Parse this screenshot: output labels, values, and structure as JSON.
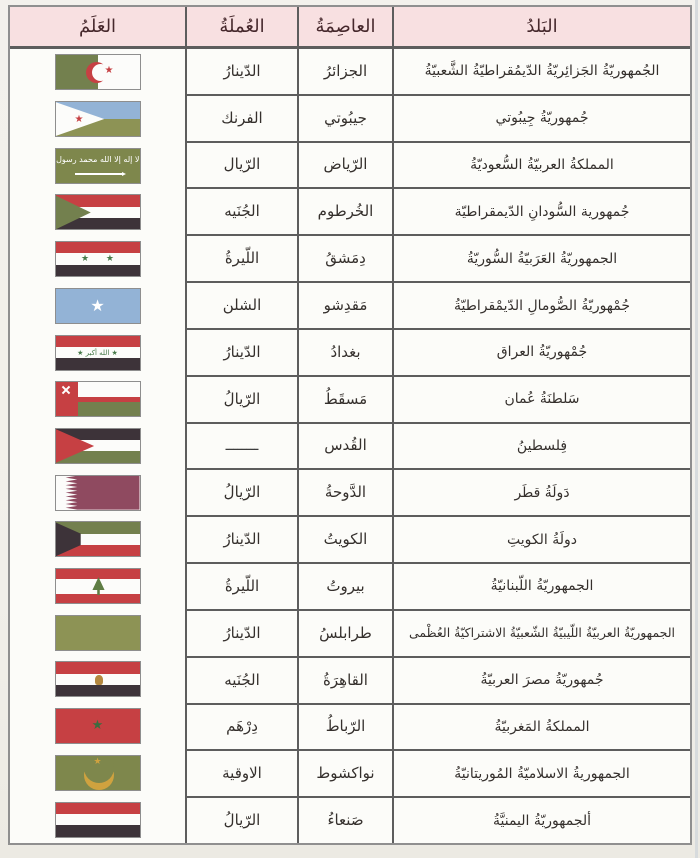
{
  "table": {
    "headers": {
      "flag": "العَلَمُ",
      "currency": "العُملَةُ",
      "capital": "العاصِمَةُ",
      "country": "البَلدُ"
    },
    "rows": [
      {
        "flag_icon": "algeria-flag",
        "country": "الجُمهوريّةُ الجَزائِريّةُ الدّيمُقراطيّةُ الشَّعبيّةُ",
        "capital": "الجزائرُ",
        "currency": "الدّينارُ"
      },
      {
        "flag_icon": "djibouti-flag",
        "country": "جُمهوريّةُ جِيبُوتي",
        "capital": "جيبُوتي",
        "currency": "الفرنك"
      },
      {
        "flag_icon": "saudi-arabia-flag",
        "country": "المملكةُ العربيّةُ السُّعوديّةُ",
        "capital": "الرّياض",
        "currency": "الرّيال"
      },
      {
        "flag_icon": "sudan-flag",
        "country": "جُمهورية السُّودانِ الدّيمقراطيّة",
        "capital": "الخُرطوم",
        "currency": "الجُنَيه"
      },
      {
        "flag_icon": "syria-flag",
        "country": "الجمهوريّةُ العَرَبيّةُ السُّوريّةُ",
        "capital": "دِمَشقُ",
        "currency": "اللّيرةُ"
      },
      {
        "flag_icon": "somalia-flag",
        "country": "جُمْهوريّةُ الصُّومالِ الدّيمْقراطيّةُ",
        "capital": "مَقدِشو",
        "currency": "الشلن"
      },
      {
        "flag_icon": "iraq-flag",
        "country": "جُمْهوريّةُ العراق",
        "capital": "بغدادُ",
        "currency": "الدّينارُ"
      },
      {
        "flag_icon": "oman-flag",
        "country": "سَلطنَةُ عُمان",
        "capital": "مَسقَطُ",
        "currency": "الرّيالُ"
      },
      {
        "flag_icon": "palestine-flag",
        "country": "فِلسطينُ",
        "capital": "القُدس",
        "currency": "ــــــــ"
      },
      {
        "flag_icon": "qatar-flag",
        "country": "دَولَةُ قطَر",
        "capital": "الدَّوحةُ",
        "currency": "الرّيالُ"
      },
      {
        "flag_icon": "kuwait-flag",
        "country": "دولَةُ الكويتِ",
        "capital": "الكويتُ",
        "currency": "الدّينارُ"
      },
      {
        "flag_icon": "lebanon-flag",
        "country": "الجمهوريّةُ اللّبنانيّةُ",
        "capital": "بيروتُ",
        "currency": "اللّيرةُ"
      },
      {
        "flag_icon": "libya-flag",
        "country": "الجمهوريّةُ العربيّةُ اللّيبيّةُ الشّعبيّةُ الاشتراكيّةُ العُظْمى",
        "capital": "طرابلسُ",
        "currency": "الدّينارُ"
      },
      {
        "flag_icon": "egypt-flag",
        "country": "جُمهوريّةُ مصرَ العربيّةُ",
        "capital": "القاهِرَةُ",
        "currency": "الجُنَيه"
      },
      {
        "flag_icon": "morocco-flag",
        "country": "المملكةُ المَغربيّةُ",
        "capital": "الرّباطُ",
        "currency": "دِرْهَم"
      },
      {
        "flag_icon": "mauritania-flag",
        "country": "الجمهوريةُ الاسلاميّةُ المُوريتانيّةُ",
        "capital": "نواكشوط",
        "currency": "الاوقية"
      },
      {
        "flag_icon": "yemen-flag",
        "country": "ألجمهوريّةُ اليمنيَّةُ",
        "capital": "صَنعاءُ",
        "currency": "الرّيالُ"
      }
    ],
    "flag_texts": {
      "saudi_inscription": "لا إله إلا الله محمد رسول الله",
      "iraq_inscription": "★ الله أكبر ★"
    },
    "glyphs": {
      "star": "★",
      "two_stars": "★ ★"
    },
    "colors": {
      "header_bg": "#f8e0e1",
      "border": "#5d5d5d",
      "flag_red": "#c64043",
      "flag_green": "#73804e",
      "flag_olive": "#7e874c",
      "flag_dark": "#3d3339",
      "flag_blue": "#93b3d6",
      "flag_maroon": "#8f4a60",
      "flag_gold": "#cfa23f"
    }
  }
}
